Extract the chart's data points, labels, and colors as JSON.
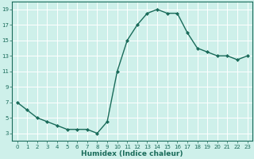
{
  "x": [
    0,
    1,
    2,
    3,
    4,
    5,
    6,
    7,
    8,
    9,
    10,
    11,
    12,
    13,
    14,
    15,
    16,
    17,
    18,
    19,
    20,
    21,
    22,
    23
  ],
  "y": [
    7,
    6,
    5,
    4.5,
    4,
    3.5,
    3.5,
    3.5,
    3,
    4.5,
    11,
    15,
    17,
    18.5,
    19,
    18.5,
    18.5,
    16,
    14,
    13.5,
    13,
    13,
    12.5,
    13
  ],
  "xlabel": "Humidex (Indice chaleur)",
  "bg_color": "#cef0ea",
  "line_color": "#1a6b5a",
  "grid_color": "#ffffff",
  "grid_minor_color": "#e8f8f5",
  "xlim": [
    -0.5,
    23.5
  ],
  "ylim": [
    2.0,
    20.0
  ],
  "yticks": [
    3,
    5,
    7,
    9,
    11,
    13,
    15,
    17,
    19
  ],
  "xticks": [
    0,
    1,
    2,
    3,
    4,
    5,
    6,
    7,
    8,
    9,
    10,
    11,
    12,
    13,
    14,
    15,
    16,
    17,
    18,
    19,
    20,
    21,
    22,
    23
  ],
  "tick_fontsize": 5.0,
  "xlabel_fontsize": 6.5,
  "linewidth": 1.0,
  "markersize": 2.0
}
